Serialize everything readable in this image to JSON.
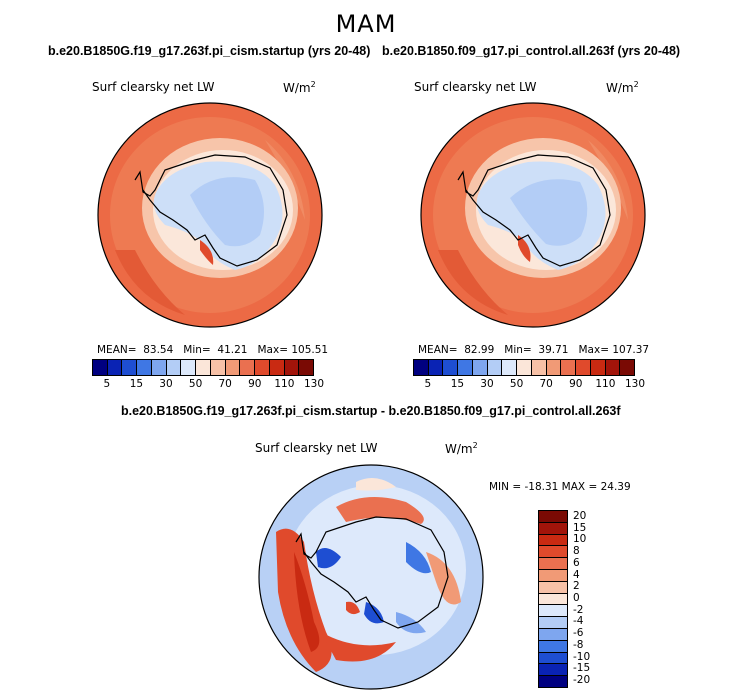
{
  "season": "MAM",
  "panels": [
    {
      "case": "b.e20.B1850G.f19_g17.263f.pi_cism.startup (yrs 20-48)",
      "variable": "Surf clearsky net LW",
      "units": "W/m",
      "units_sup": "2",
      "stats": {
        "mean_label": "MEAN=",
        "mean": "83.54",
        "min_label": "Min=",
        "min": "41.21",
        "max_label": "Max=",
        "max": "105.51"
      }
    },
    {
      "case": "b.e20.B1850.f09_g17.pi_control.all.263f (yrs 20-48)",
      "variable": "Surf clearsky net LW",
      "units": "W/m",
      "units_sup": "2",
      "stats": {
        "mean_label": "MEAN=",
        "mean": "82.99",
        "min_label": "Min=",
        "min": "39.71",
        "max_label": "Max=",
        "max": "107.37"
      }
    }
  ],
  "diff": {
    "title": "b.e20.B1850G.f19_g17.263f.pi_cism.startup - b.e20.B1850.f09_g17.pi_control.all.263f",
    "variable": "Surf clearsky net LW",
    "units": "W/m",
    "units_sup": "2",
    "minmax": "MIN = -18.31  MAX =  24.39"
  },
  "colorbar_abs": {
    "labels": [
      "5",
      "15",
      "30",
      "50",
      "70",
      "90",
      "110",
      "130"
    ],
    "colors": [
      "#000080",
      "#0a23b4",
      "#1e4ed2",
      "#3f77e4",
      "#7ea6ef",
      "#b3cdf6",
      "#dde9fb",
      "#fbe6d9",
      "#f7c1a7",
      "#f19a76",
      "#ea7050",
      "#e04a2c",
      "#c92a12",
      "#a2140a",
      "#7a0a04"
    ]
  },
  "colorbar_diff": {
    "labels": [
      "20",
      "15",
      "10",
      "8",
      "6",
      "4",
      "2",
      "0",
      "-2",
      "-4",
      "-6",
      "-8",
      "-10",
      "-15",
      "-20"
    ],
    "colors": [
      "#7a0a04",
      "#a2140a",
      "#c92a12",
      "#e04a2c",
      "#ea7050",
      "#f19a76",
      "#f7c1a7",
      "#fbe6d9",
      "#dde9fb",
      "#b3cdf6",
      "#7ea6ef",
      "#3f77e4",
      "#1e4ed2",
      "#0a23b4",
      "#000080"
    ]
  },
  "map_colors": {
    "ocean_warm": "#ec6a45",
    "ocean_mid": "#f08b64",
    "coast": "#f7c5aa",
    "ice_pale": "#fbe7da",
    "ice_blue": "#cddff8",
    "ice_blue2": "#b3cdf6"
  },
  "diff_colors": {
    "bg": "#b8d0f5",
    "light": "#dde9fb",
    "pale": "#fbe6d9",
    "red": "#e04a2c",
    "dred": "#c92a12",
    "blue": "#3f77e4",
    "dblue": "#1e4ed2"
  }
}
